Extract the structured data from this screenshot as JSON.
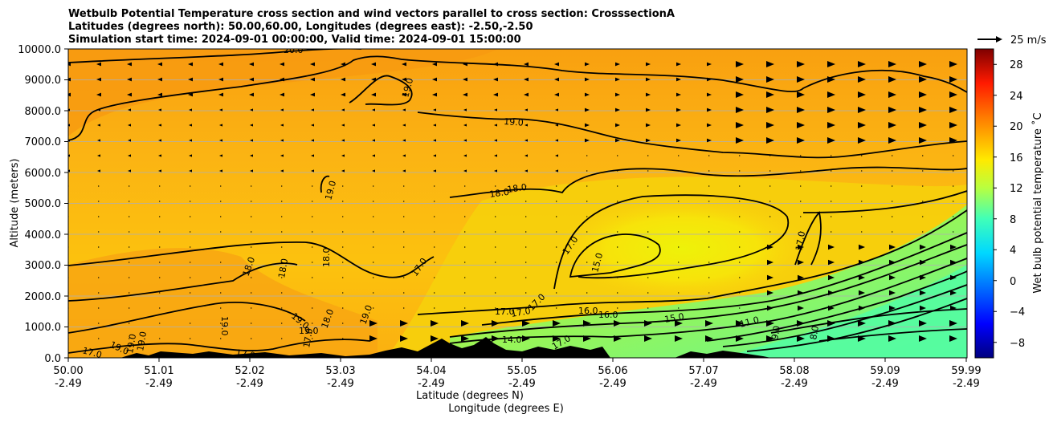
{
  "chart_data": {
    "type": "heatmap",
    "subtype": "vertical cross section with filled contours, contour lines and wind vectors",
    "title_lines": [
      "Wetbulb Potential Temperature cross section and wind vectors parallel to cross section: CrosssectionA",
      "Latitudes (degrees north): 50.00,60.00, Longitudes (degrees east): -2.50,-2.50",
      "Simulation start time: 2024-09-01 00:00:00, Valid time: 2024-09-01 15:00:00"
    ],
    "xlabel_lines": [
      "Latitude (degrees N)",
      "Longitude (degrees E)"
    ],
    "ylabel": "Altitude (meters)",
    "x_ticks": [
      {
        "lat": "50.00",
        "lon": "-2.49"
      },
      {
        "lat": "51.01",
        "lon": "-2.49"
      },
      {
        "lat": "52.02",
        "lon": "-2.49"
      },
      {
        "lat": "53.03",
        "lon": "-2.49"
      },
      {
        "lat": "54.04",
        "lon": "-2.49"
      },
      {
        "lat": "55.05",
        "lon": "-2.49"
      },
      {
        "lat": "56.06",
        "lon": "-2.49"
      },
      {
        "lat": "57.07",
        "lon": "-2.49"
      },
      {
        "lat": "58.08",
        "lon": "-2.49"
      },
      {
        "lat": "59.09",
        "lon": "-2.49"
      },
      {
        "lat": "59.99",
        "lon": "-2.49"
      }
    ],
    "xlim": [
      50.0,
      59.99
    ],
    "y_ticks": [
      "0.0",
      "1000.0",
      "2000.0",
      "3000.0",
      "4000.0",
      "5000.0",
      "6000.0",
      "7000.0",
      "8000.0",
      "9000.0",
      "10000.0"
    ],
    "ylim": [
      0,
      10000
    ],
    "grid": "horizontal",
    "colorbar": {
      "label": "Wet bulb potential temperature ˚C",
      "ticks": [
        "−8",
        "−4",
        "0",
        "4",
        "8",
        "12",
        "16",
        "20",
        "24",
        "28"
      ],
      "range": [
        -10,
        30
      ],
      "colormap": "jet"
    },
    "wind_key": {
      "label": "25 m/s"
    },
    "contour_labels": [
      "20.0",
      "19.0",
      "19.0",
      "19.0",
      "18.0",
      "18.0",
      "17.0",
      "18.0",
      "18.0",
      "18.0",
      "17.0",
      "15.0",
      "17.0",
      "17.0",
      "17.0",
      "17.0",
      "16.0",
      "16.0",
      "15.0",
      "14.0",
      "11.0",
      "9.0",
      "8.0",
      "19.0",
      "19.0",
      "19.0",
      "18.0",
      "19.0",
      "17.0",
      "19.0",
      "19.0",
      "19.0",
      "17.0",
      "17.0",
      "17.0"
    ],
    "fill_field": [
      {
        "lat": 50.0,
        "alt": 9000,
        "value": 21.5
      },
      {
        "lat": 52.5,
        "alt": 1000,
        "value": 20.5
      },
      {
        "lat": 55.0,
        "alt": 5000,
        "value": 19.0
      },
      {
        "lat": 57.0,
        "alt": 3500,
        "value": 14.5
      },
      {
        "lat": 59.5,
        "alt": 800,
        "value": 8.0
      }
    ]
  }
}
